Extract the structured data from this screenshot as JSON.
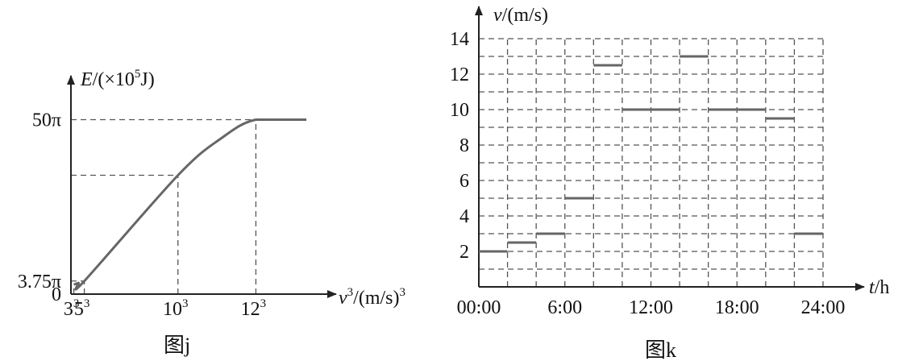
{
  "chart_data": [
    {
      "type": "line",
      "caption": "图j",
      "ylabel": {
        "sym": "E",
        "pre": "/(×10",
        "exp": "5",
        "post": "J)"
      },
      "xlabel": {
        "sym": "v",
        "exp": "3",
        "mid": "/(m/s)",
        "exp2": "3"
      },
      "y_ticks": [
        {
          "label": "0",
          "value": 0
        },
        {
          "label": "3.75π",
          "value": 11.78
        },
        {
          "label": "50π",
          "value": 157.08
        }
      ],
      "x_ticks": [
        {
          "base": "3",
          "exp": "3",
          "value": 27
        },
        {
          "base": "5",
          "exp": "3",
          "value": 125
        },
        {
          "base": "10",
          "exp": "3",
          "value": 1000
        },
        {
          "base": "12",
          "exp": "3",
          "value": 1728
        }
      ],
      "series": [
        {
          "points": [
            {
              "x": 27,
              "y": 8.5
            },
            {
              "x": 70,
              "y": 10.0
            },
            {
              "x": 125,
              "y": 11.78
            },
            {
              "x": 1000,
              "y": 107.0
            },
            {
              "x": 1400,
              "y": 140.0
            },
            {
              "x": 1728,
              "y": 157.08
            },
            {
              "x": 2200,
              "y": 157.08
            }
          ]
        }
      ],
      "guides": [
        {
          "x": 27,
          "y": 8.5
        },
        {
          "x": 125,
          "y": 11.78
        },
        {
          "x": 1000,
          "y": 107.0
        },
        {
          "x": 1728,
          "y": 157.08
        }
      ],
      "xlim": [
        0,
        2350
      ],
      "ylim": [
        0,
        185
      ],
      "grid": false
    },
    {
      "type": "step",
      "caption": "图k",
      "ylabel": {
        "sym": "v",
        "unit": "/(m/s)"
      },
      "xlabel": {
        "sym": "t",
        "unit": "/h"
      },
      "y_ticks": [
        2,
        4,
        6,
        8,
        10,
        12,
        14
      ],
      "x_ticks": [
        {
          "label": "00:00",
          "value": 0
        },
        {
          "label": "6:00",
          "value": 6
        },
        {
          "label": "12:00",
          "value": 12
        },
        {
          "label": "18:00",
          "value": 18
        },
        {
          "label": "24:00",
          "value": 24
        }
      ],
      "segments": [
        {
          "x0": 0,
          "x1": 2,
          "y": 2
        },
        {
          "x0": 2,
          "x1": 4,
          "y": 2.5
        },
        {
          "x0": 4,
          "x1": 6,
          "y": 3
        },
        {
          "x0": 6,
          "x1": 8,
          "y": 5
        },
        {
          "x0": 8,
          "x1": 10,
          "y": 12.5
        },
        {
          "x0": 10,
          "x1": 14,
          "y": 10
        },
        {
          "x0": 14,
          "x1": 16,
          "y": 13
        },
        {
          "x0": 16,
          "x1": 20,
          "y": 10
        },
        {
          "x0": 20,
          "x1": 22,
          "y": 9.5
        },
        {
          "x0": 22,
          "x1": 24,
          "y": 3
        }
      ],
      "xlim": [
        0,
        24
      ],
      "ylim": [
        0,
        14
      ],
      "grid": true
    }
  ]
}
